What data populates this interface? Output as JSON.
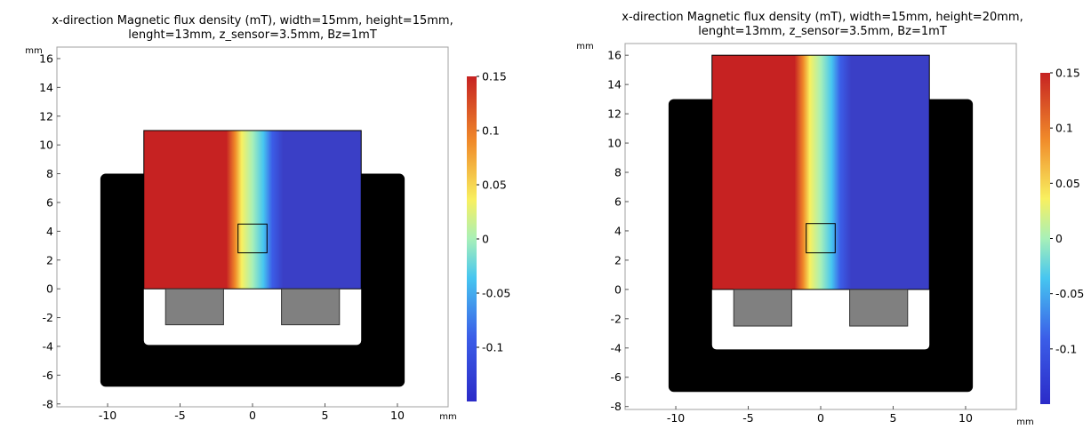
{
  "chart_data": [
    {
      "type": "heatmap",
      "title_lines": [
        "x-direction Magnetic flux density (mT), width=15mm, height=15mm,",
        "lenght=13mm, z_sensor=3.5mm, Bz=1mT"
      ],
      "x_unit": "mm",
      "y_unit": "mm",
      "xlim": [
        -13.5,
        13.5
      ],
      "ylim": [
        -8.2,
        16.8
      ],
      "x_ticks": [
        -10,
        -5,
        0,
        5,
        10
      ],
      "y_ticks": [
        -8,
        -6,
        -4,
        -2,
        0,
        2,
        4,
        6,
        8,
        10,
        12,
        14,
        16
      ],
      "magnet_width": 15,
      "magnet_height": 15,
      "magnet_length": 13,
      "z_sensor": 3.5,
      "Bz": 1,
      "field_region": {
        "x": [
          -7.5,
          7.5
        ],
        "y": [
          0,
          11
        ]
      },
      "yoke_outer": {
        "x": [
          -10.5,
          10.5
        ],
        "y": [
          -6.8,
          8
        ]
      },
      "cavity_outer": {
        "x": [
          -7.5,
          7.5
        ],
        "y": [
          -3.9,
          11
        ]
      },
      "coils": [
        {
          "x": [
            -6,
            -2
          ],
          "y": [
            -2.5,
            0
          ]
        },
        {
          "x": [
            2,
            6
          ],
          "y": [
            -2.5,
            0
          ]
        }
      ],
      "sensor_box": {
        "x": [
          -1,
          1
        ],
        "y": [
          2.5,
          4.5
        ]
      },
      "colorbar": {
        "min": -0.15,
        "max": 0.15,
        "ticks": [
          0.15,
          0.1,
          0.05,
          0,
          -0.05,
          -0.1
        ],
        "colormap": "jet"
      }
    },
    {
      "type": "heatmap",
      "title_lines": [
        "x-direction Magnetic flux density (mT), width=15mm, height=20mm,",
        "lenght=13mm, z_sensor=3.5mm, Bz=1mT"
      ],
      "x_unit": "mm",
      "y_unit": "mm",
      "xlim": [
        -13.5,
        13.5
      ],
      "ylim": [
        -8.2,
        16.8
      ],
      "x_ticks": [
        -10,
        -5,
        0,
        5,
        10
      ],
      "y_ticks": [
        -8,
        -6,
        -4,
        -2,
        0,
        2,
        4,
        6,
        8,
        10,
        12,
        14,
        16
      ],
      "magnet_width": 15,
      "magnet_height": 20,
      "magnet_length": 13,
      "z_sensor": 3.5,
      "Bz": 1,
      "field_region": {
        "x": [
          -7.5,
          7.5
        ],
        "y": [
          0,
          16
        ]
      },
      "yoke_outer": {
        "x": [
          -10.5,
          10.5
        ],
        "y": [
          -7,
          13
        ]
      },
      "cavity_outer": {
        "x": [
          -7.5,
          7.5
        ],
        "y": [
          -4.1,
          16
        ]
      },
      "coils": [
        {
          "x": [
            -6,
            -2
          ],
          "y": [
            -2.5,
            0
          ]
        },
        {
          "x": [
            2,
            6
          ],
          "y": [
            -2.5,
            0
          ]
        }
      ],
      "sensor_box": {
        "x": [
          -1,
          1
        ],
        "y": [
          2.5,
          4.5
        ]
      },
      "colorbar": {
        "min": -0.15,
        "max": 0.15,
        "ticks": [
          0.15,
          0.1,
          0.05,
          0,
          -0.05,
          -0.1
        ],
        "colormap": "jet"
      }
    }
  ]
}
